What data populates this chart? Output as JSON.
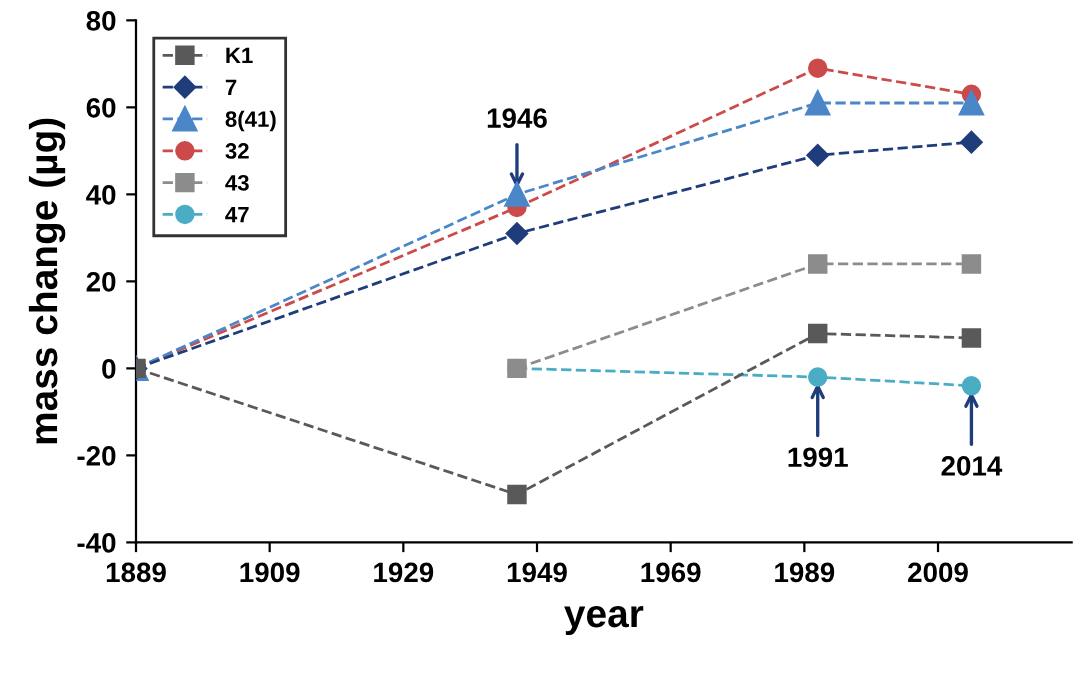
{
  "chart_data": {
    "type": "line",
    "xlabel": "year",
    "ylabel": "mass change (µg)",
    "xlim": [
      1889,
      2029
    ],
    "xticks": [
      1889,
      1909,
      1929,
      1949,
      1969,
      1989,
      2009
    ],
    "ylim": [
      -40,
      80
    ],
    "yticks": [
      -40,
      -20,
      0,
      20,
      40,
      60,
      80
    ],
    "grid": false,
    "legend": "top left",
    "line_style": "dashed",
    "series": [
      {
        "name": "K1",
        "color": "#595959",
        "marker": "square",
        "x": [
          1889,
          1946,
          1991,
          2014
        ],
        "values": [
          0,
          -29,
          8,
          7
        ]
      },
      {
        "name": "7",
        "color": "#1f3d7a",
        "marker": "diamond",
        "x": [
          1889,
          1946,
          1991,
          2014
        ],
        "values": [
          0,
          31,
          49,
          52
        ]
      },
      {
        "name": "8(41)",
        "color": "#4a86c8",
        "marker": "triangle",
        "x": [
          1889,
          1946,
          1991,
          2014
        ],
        "values": [
          0,
          40,
          61,
          61
        ]
      },
      {
        "name": "32",
        "color": "#cd4a4a",
        "marker": "circle",
        "x": [
          1889,
          1946,
          1991,
          2014
        ],
        "values": [
          0,
          37,
          69,
          63
        ]
      },
      {
        "name": "43",
        "color": "#8c8c8c",
        "marker": "square",
        "x": [
          1946,
          1991,
          2014
        ],
        "values": [
          0,
          24,
          24
        ]
      },
      {
        "name": "47",
        "color": "#4bacc6",
        "marker": "circle",
        "x": [
          1946,
          1991,
          2014
        ],
        "values": [
          0,
          -2,
          -4
        ]
      }
    ],
    "annotations": [
      {
        "text": "1946",
        "x": 1946,
        "y": 40
      },
      {
        "text": "1991",
        "x": 1991,
        "y": -2
      },
      {
        "text": "2014",
        "x": 2014,
        "y": -4
      }
    ]
  }
}
